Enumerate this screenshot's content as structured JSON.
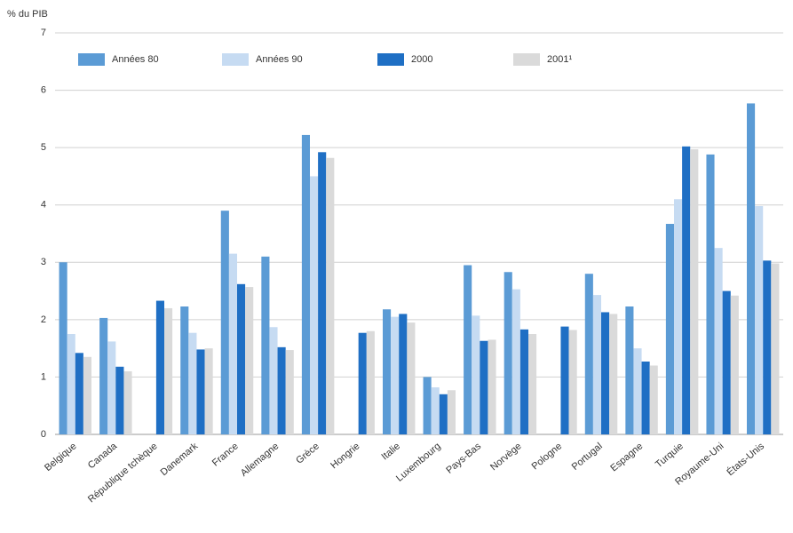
{
  "chart_data": {
    "type": "bar",
    "y_label": "% du PIB",
    "categories": [
      "Belgique",
      "Canada",
      "République tchèque",
      "Danemark",
      "France",
      "Allemagne",
      "Grèce",
      "Hongrie",
      "Italie",
      "Luxembourg",
      "Pays-Bas",
      "Norvège",
      "Pologne",
      "Portugal",
      "Espagne",
      "Turquie",
      "Royaume-Uni",
      "États-Unis"
    ],
    "series": [
      {
        "name": "Années 80",
        "color": "#5b9bd5",
        "values": [
          3.0,
          2.03,
          null,
          2.23,
          3.9,
          3.1,
          5.22,
          null,
          2.18,
          1.0,
          2.95,
          2.83,
          null,
          2.8,
          2.23,
          3.67,
          4.88,
          5.77
        ]
      },
      {
        "name": "Années 90",
        "color": "#c6dbf2",
        "values": [
          1.75,
          1.62,
          null,
          1.77,
          3.15,
          1.87,
          4.5,
          null,
          2.05,
          0.82,
          2.07,
          2.53,
          null,
          2.43,
          1.5,
          4.1,
          3.25,
          3.98
        ]
      },
      {
        "name": "2000",
        "color": "#1f6fc4",
        "values": [
          1.42,
          1.18,
          2.33,
          1.48,
          2.62,
          1.52,
          4.92,
          1.77,
          2.1,
          0.7,
          1.63,
          1.83,
          1.88,
          2.13,
          1.27,
          5.02,
          2.5,
          3.03
        ]
      },
      {
        "name": "2001¹",
        "color": "#dadada",
        "values": [
          1.35,
          1.1,
          2.2,
          1.5,
          2.57,
          1.47,
          4.82,
          1.8,
          1.95,
          0.77,
          1.65,
          1.75,
          1.82,
          2.1,
          1.2,
          4.97,
          2.42,
          2.98
        ]
      }
    ],
    "ylim": [
      0,
      7
    ],
    "yticks": [
      0,
      1,
      2,
      3,
      4,
      5,
      6,
      7
    ],
    "grid": true,
    "legend": "top"
  }
}
